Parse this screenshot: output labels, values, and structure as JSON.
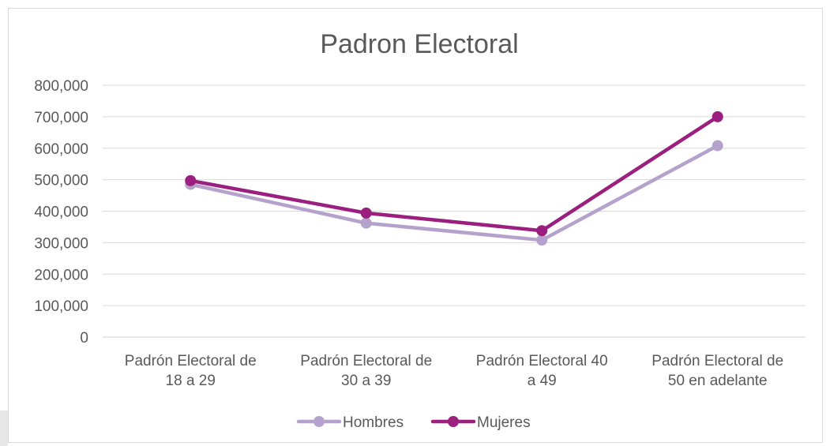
{
  "chart_data": {
    "type": "line",
    "title": "Padron Electoral",
    "categories": [
      [
        "Padrón Electoral de",
        "18 a 29"
      ],
      [
        "Padrón Electoral de",
        "30 a 39"
      ],
      [
        "Padrón Electoral 40",
        "a 49"
      ],
      [
        "Padrón Electoral de",
        "50 en adelante"
      ]
    ],
    "yticks": [
      "0",
      "100,000",
      "200,000",
      "300,000",
      "400,000",
      "500,000",
      "600,000",
      "700,000",
      "800,000"
    ],
    "ylim": [
      0,
      800000
    ],
    "grid": true,
    "legend_position": "bottom",
    "series": [
      {
        "name": "Hombres",
        "color": "#b4a2cc",
        "values": [
          485000,
          362000,
          308000,
          608000
        ]
      },
      {
        "name": "Mujeres",
        "color": "#9b1f7f",
        "values": [
          497000,
          394000,
          338000,
          700000
        ]
      }
    ]
  }
}
